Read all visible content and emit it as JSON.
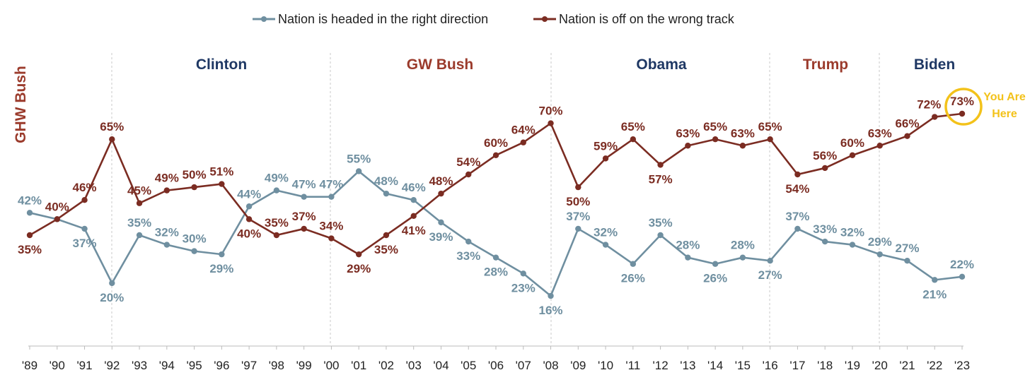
{
  "chart_data": {
    "type": "line",
    "categories": [
      "'89",
      "'90",
      "'91",
      "'92",
      "'93",
      "'94",
      "'95",
      "'96",
      "'97",
      "'98",
      "'99",
      "'00",
      "'01",
      "'02",
      "'03",
      "'04",
      "'05",
      "'06",
      "'07",
      "'08",
      "'09",
      "'10",
      "'11",
      "'12",
      "'13",
      "'14",
      "'15",
      "'16",
      "'17",
      "'18",
      "'19",
      "'20",
      "'21",
      "'22",
      "'23"
    ],
    "series": [
      {
        "name": "Nation is headed in the right direction",
        "color": "#6f8fa0",
        "values": [
          42,
          40,
          37,
          20,
          35,
          32,
          30,
          29,
          44,
          49,
          47,
          47,
          55,
          48,
          46,
          39,
          33,
          28,
          23,
          16,
          37,
          32,
          26,
          35,
          28,
          26,
          28,
          27,
          37,
          33,
          32,
          29,
          27,
          21,
          22
        ],
        "labels": [
          "42%",
          "",
          "37%",
          "20%",
          "35%",
          "32%",
          "30%",
          "29%",
          "44%",
          "49%",
          "47%",
          "47%",
          "55%",
          "48%",
          "46%",
          "39%",
          "33%",
          "28%",
          "23%",
          "16%",
          "37%",
          "32%",
          "26%",
          "35%",
          "28%",
          "26%",
          "28%",
          "27%",
          "37%",
          "33%",
          "32%",
          "29%",
          "27%",
          "21%",
          "22%"
        ]
      },
      {
        "name": "Nation is off on the wrong track",
        "color": "#7b2c22",
        "values": [
          35,
          40,
          46,
          65,
          45,
          49,
          50,
          51,
          40,
          35,
          37,
          34,
          29,
          35,
          41,
          48,
          54,
          60,
          64,
          70,
          50,
          59,
          65,
          57,
          63,
          65,
          63,
          65,
          54,
          56,
          60,
          63,
          66,
          72,
          73
        ],
        "labels": [
          "35%",
          "40%",
          "46%",
          "65%",
          "45%",
          "49%",
          "50%",
          "51%",
          "40%",
          "35%",
          "37%",
          "34%",
          "29%",
          "35%",
          "41%",
          "48%",
          "54%",
          "60%",
          "64%",
          "70%",
          "50%",
          "59%",
          "65%",
          "57%",
          "63%",
          "65%",
          "63%",
          "65%",
          "54%",
          "56%",
          "60%",
          "63%",
          "66%",
          "72%",
          "73%"
        ]
      }
    ],
    "ylim": [
      0,
      100
    ],
    "grid": false,
    "legend": "top-center",
    "presidents": [
      {
        "name": "GHW Bush",
        "color": "#9b3b2c"
      },
      {
        "name": "Clinton",
        "color": "#1f3864"
      },
      {
        "name": "GW Bush",
        "color": "#9b3b2c"
      },
      {
        "name": "Obama",
        "color": "#1f3864"
      },
      {
        "name": "Trump",
        "color": "#9b3b2c"
      },
      {
        "name": "Biden",
        "color": "#1f3864"
      }
    ],
    "annotation": {
      "text_line1": "You Are",
      "text_line2": "Here",
      "color": "#f3c21a"
    }
  }
}
